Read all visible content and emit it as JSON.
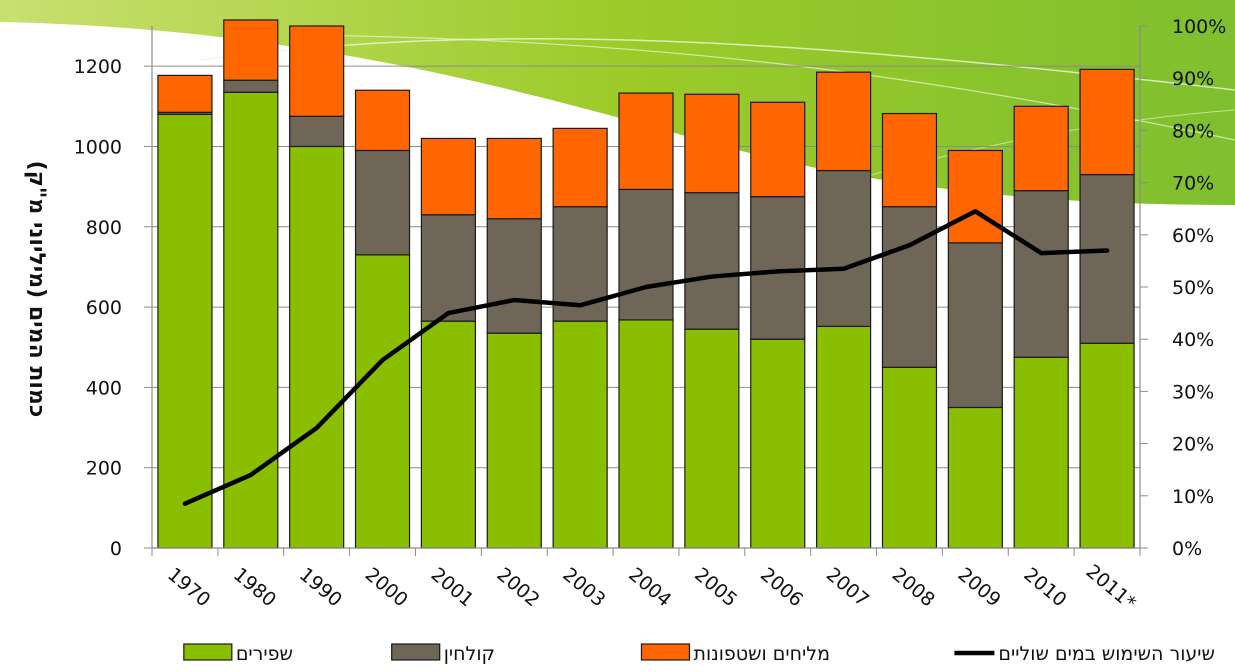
{
  "chart_data": {
    "type": "bar",
    "stacked": true,
    "categories": [
      "1970",
      "1980",
      "1990",
      "2000",
      "2001",
      "2002",
      "2003",
      "2004",
      "2005",
      "2006",
      "2007",
      "2008",
      "2009",
      "2010",
      "2011*"
    ],
    "series": [
      {
        "name": "שפירים",
        "color": "#8ABE00",
        "values": [
          1080,
          1135,
          1000,
          730,
          565,
          535,
          565,
          568,
          545,
          520,
          552,
          450,
          350,
          475,
          510
        ]
      },
      {
        "name": "קולחין",
        "color": "#6F6657",
        "values": [
          5,
          30,
          75,
          260,
          265,
          285,
          285,
          325,
          340,
          355,
          388,
          400,
          410,
          415,
          420
        ]
      },
      {
        "name": "מליחים ושטפונות",
        "color": "#FF6600",
        "values": [
          92,
          150,
          225,
          150,
          190,
          200,
          195,
          240,
          245,
          235,
          245,
          232,
          230,
          210,
          262
        ]
      }
    ],
    "line_series": {
      "name": "שיעור השימוש במים שוליים",
      "color": "#000000",
      "axis": "right",
      "values": [
        8.5,
        14,
        23,
        36,
        45,
        47.5,
        46.5,
        50,
        52,
        53,
        53.5,
        58,
        64.5,
        56.5,
        57
      ]
    },
    "ylabel": "כמות המים (מיליוני מ\"ק)",
    "ylim": [
      0,
      1300
    ],
    "yticks": [
      0,
      200,
      400,
      600,
      800,
      1000,
      1200
    ],
    "y2lim": [
      0,
      100
    ],
    "y2ticks": [
      "0%",
      "10%",
      "20%",
      "30%",
      "40%",
      "50%",
      "60%",
      "70%",
      "80%",
      "90%",
      "100%"
    ],
    "legend_position": "bottom",
    "grid": true
  }
}
